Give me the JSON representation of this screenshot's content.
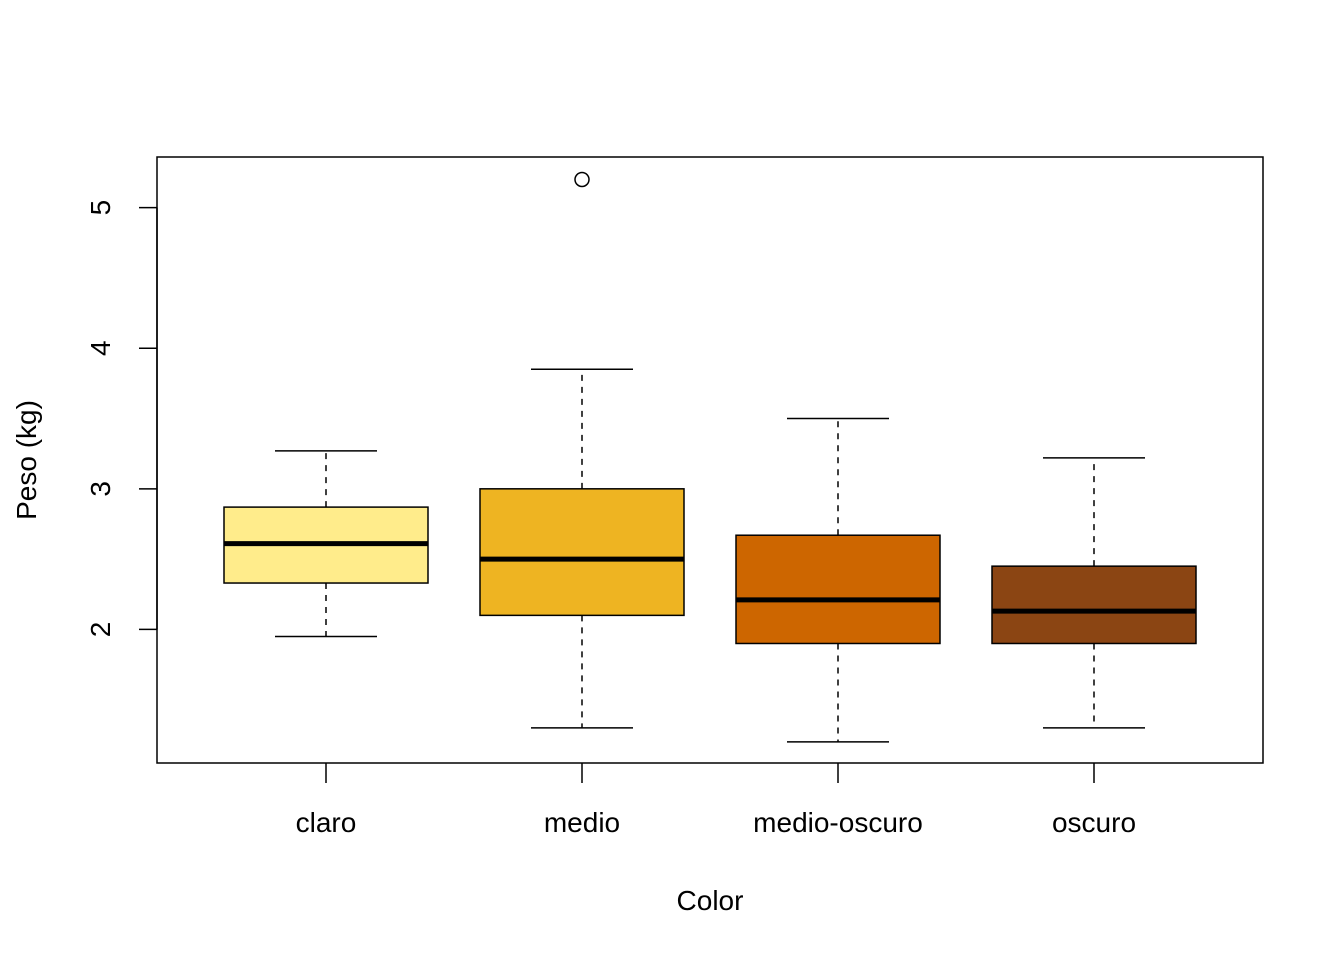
{
  "chart_data": {
    "type": "boxplot",
    "title": "",
    "xlabel": "Color",
    "ylabel": "Peso (kg)",
    "ylim": [
      1.05,
      5.36
    ],
    "yticks": [
      "2",
      "3",
      "4",
      "5"
    ],
    "ytick_values": [
      2,
      3,
      4,
      5
    ],
    "grid": false,
    "categories": [
      "claro",
      "medio",
      "medio-oscuro",
      "oscuro"
    ],
    "boxes": [
      {
        "name": "claro",
        "min": 1.95,
        "q1": 2.33,
        "median": 2.61,
        "q3": 2.87,
        "max": 3.27,
        "outliers": [],
        "color": "#FFEC8B"
      },
      {
        "name": "medio",
        "min": 1.3,
        "q1": 2.1,
        "median": 2.5,
        "q3": 3.0,
        "max": 3.85,
        "outliers": [
          5.2
        ],
        "color": "#EEB422"
      },
      {
        "name": "medio-oscuro",
        "min": 1.2,
        "q1": 1.9,
        "median": 2.21,
        "q3": 2.67,
        "max": 3.5,
        "outliers": [],
        "color": "#CD6600"
      },
      {
        "name": "oscuro",
        "min": 1.3,
        "q1": 1.9,
        "median": 2.13,
        "q3": 2.45,
        "max": 3.22,
        "outliers": [],
        "color": "#8B4513"
      }
    ]
  }
}
